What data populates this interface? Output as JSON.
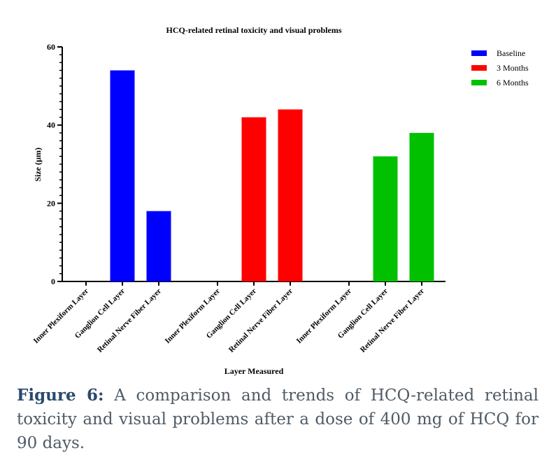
{
  "chart_data": {
    "type": "bar",
    "title": "HCQ-related retinal toxicity and visual problems",
    "xlabel": "Layer Measured",
    "ylabel": "Size (µm)",
    "ylim": [
      0,
      60
    ],
    "yticks": [
      0,
      20,
      40,
      60
    ],
    "grid": false,
    "legend_position": "top-right",
    "groups": [
      {
        "name": "Baseline",
        "color": "#0000ff",
        "bars": [
          {
            "label": "Inner Plexiform Layer",
            "value": 0
          },
          {
            "label": "Ganglion Cell Layer",
            "value": 54
          },
          {
            "label": "Retinal Nerve Fiber Layer",
            "value": 18
          }
        ]
      },
      {
        "name": "3 Months",
        "color": "#ff0000",
        "bars": [
          {
            "label": "Inner Plexiform Layer",
            "value": 0
          },
          {
            "label": "Ganglion Cell Layer",
            "value": 42
          },
          {
            "label": "Retinal Nerve Fiber Layer",
            "value": 44
          }
        ]
      },
      {
        "name": "6 Months",
        "color": "#00c000",
        "bars": [
          {
            "label": "Inner Plexiform Layer",
            "value": 0
          },
          {
            "label": "Ganglion Cell Layer",
            "value": 32
          },
          {
            "label": "Retinal Nerve Fiber Layer",
            "value": 38
          }
        ]
      }
    ]
  },
  "caption": {
    "label": "Figure 6:",
    "text": " A comparison and trends of HCQ-related retinal toxicity and visual problems after a dose of 400 mg of HCQ for 90 days."
  }
}
